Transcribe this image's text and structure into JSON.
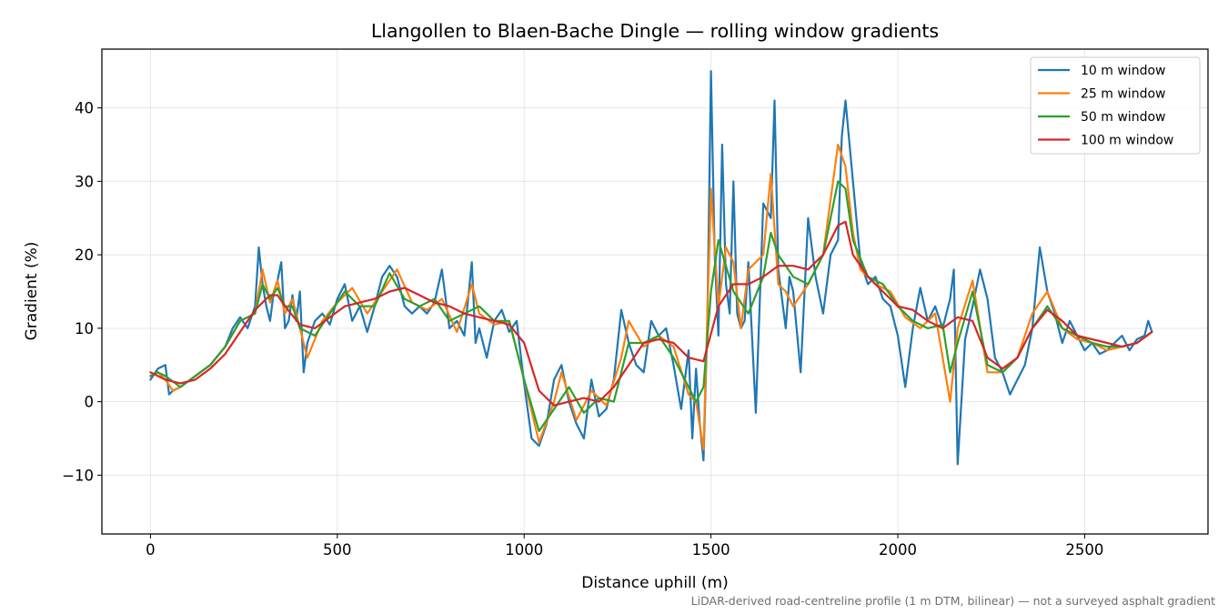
{
  "chart_data": {
    "type": "line",
    "title": "Llangollen to Blaen-Bache Dingle — rolling window gradients",
    "xlabel": "Distance uphill (m)",
    "ylabel": "Gradient (%)",
    "xlim": [
      -130,
      2830
    ],
    "ylim": [
      -18,
      48
    ],
    "xticks": [
      0,
      500,
      1000,
      1500,
      2000,
      2500
    ],
    "xtick_labels": [
      "0",
      "500",
      "1000",
      "1500",
      "2000",
      "2500"
    ],
    "yticks": [
      -10,
      0,
      10,
      20,
      30,
      40
    ],
    "ytick_labels": [
      "−10",
      "0",
      "10",
      "20",
      "30",
      "40"
    ],
    "grid": true,
    "legend_position": "top-right",
    "footnote": "LiDAR-derived road-centreline profile (1 m DTM, bilinear) — not a surveyed asphalt gradient",
    "series": [
      {
        "name": "10 m window",
        "color": "#1f77b4",
        "x": [
          0,
          20,
          40,
          50,
          60,
          80,
          120,
          160,
          200,
          220,
          240,
          260,
          280,
          290,
          300,
          310,
          320,
          330,
          340,
          350,
          360,
          370,
          380,
          390,
          400,
          410,
          420,
          440,
          460,
          480,
          500,
          520,
          540,
          560,
          580,
          600,
          620,
          640,
          660,
          680,
          700,
          720,
          740,
          760,
          780,
          800,
          820,
          840,
          860,
          870,
          880,
          900,
          920,
          940,
          960,
          980,
          1000,
          1020,
          1040,
          1060,
          1080,
          1100,
          1120,
          1140,
          1160,
          1180,
          1200,
          1220,
          1240,
          1260,
          1280,
          1300,
          1320,
          1340,
          1360,
          1380,
          1400,
          1420,
          1440,
          1450,
          1460,
          1470,
          1480,
          1490,
          1500,
          1510,
          1520,
          1530,
          1540,
          1550,
          1560,
          1570,
          1580,
          1590,
          1600,
          1620,
          1640,
          1660,
          1670,
          1680,
          1700,
          1710,
          1720,
          1740,
          1760,
          1780,
          1800,
          1820,
          1840,
          1850,
          1860,
          1880,
          1900,
          1920,
          1940,
          1960,
          1980,
          2000,
          2020,
          2040,
          2060,
          2080,
          2100,
          2120,
          2140,
          2150,
          2160,
          2180,
          2200,
          2220,
          2240,
          2260,
          2280,
          2300,
          2320,
          2340,
          2360,
          2380,
          2400,
          2420,
          2440,
          2460,
          2480,
          2500,
          2520,
          2540,
          2560,
          2580,
          2600,
          2620,
          2640,
          2660,
          2670,
          2680
        ],
        "values": [
          3.0,
          4.5,
          5.0,
          1.0,
          1.5,
          2.0,
          3.5,
          5.0,
          7.5,
          10.0,
          11.5,
          10.0,
          13.0,
          21.0,
          16.0,
          13.0,
          11.0,
          15.0,
          16.5,
          19.0,
          10.0,
          11.0,
          14.5,
          11.0,
          15.0,
          4.0,
          8.0,
          11.0,
          12.0,
          10.5,
          14.0,
          16.0,
          11.0,
          13.0,
          9.5,
          13.0,
          17.0,
          18.5,
          17.0,
          13.0,
          12.0,
          13.0,
          12.0,
          13.5,
          18.0,
          10.0,
          11.0,
          9.0,
          19.0,
          8.0,
          10.0,
          6.0,
          11.0,
          12.5,
          9.5,
          11.0,
          2.5,
          -5.0,
          -6.0,
          -3.0,
          3.0,
          5.0,
          0.0,
          -3.0,
          -5.0,
          3.0,
          -2.0,
          -1.0,
          3.0,
          12.5,
          8.0,
          5.0,
          4.0,
          11.0,
          9.0,
          10.0,
          5.0,
          -1.0,
          7.0,
          -5.0,
          4.5,
          -3.0,
          -8.0,
          10.0,
          45.0,
          20.0,
          9.0,
          35.0,
          16.0,
          12.0,
          30.0,
          12.0,
          10.0,
          11.0,
          19.0,
          -1.5,
          27.0,
          25.0,
          41.0,
          18.0,
          10.0,
          17.0,
          15.0,
          4.0,
          25.0,
          17.0,
          12.0,
          20.0,
          22.0,
          36.0,
          41.0,
          30.0,
          19.0,
          16.0,
          17.0,
          14.0,
          13.0,
          9.0,
          2.0,
          10.0,
          15.5,
          11.0,
          13.0,
          10.0,
          14.0,
          18.0,
          -8.5,
          8.5,
          13.0,
          18.0,
          14.0,
          6.0,
          4.0,
          1.0,
          3.0,
          5.0,
          10.0,
          21.0,
          15.0,
          12.0,
          8.0,
          11.0,
          9.0,
          7.0,
          8.0,
          6.5,
          7.0,
          8.0,
          9.0,
          7.0,
          8.5,
          9.0,
          11.0,
          9.5
        ]
      },
      {
        "name": "25 m window",
        "color": "#ff7f0e",
        "x": [
          0,
          20,
          40,
          60,
          80,
          120,
          160,
          200,
          240,
          280,
          300,
          320,
          340,
          360,
          380,
          400,
          420,
          460,
          500,
          540,
          580,
          620,
          660,
          700,
          740,
          780,
          820,
          860,
          880,
          920,
          960,
          1000,
          1040,
          1080,
          1100,
          1140,
          1180,
          1220,
          1260,
          1280,
          1320,
          1360,
          1400,
          1440,
          1460,
          1480,
          1500,
          1520,
          1540,
          1560,
          1580,
          1600,
          1640,
          1660,
          1680,
          1700,
          1720,
          1760,
          1800,
          1840,
          1860,
          1880,
          1900,
          1940,
          1980,
          2020,
          2060,
          2100,
          2140,
          2160,
          2200,
          2240,
          2280,
          2320,
          2360,
          2400,
          2440,
          2480,
          2520,
          2560,
          2600,
          2640,
          2680
        ],
        "values": [
          3.5,
          4.0,
          3.0,
          1.5,
          2.0,
          3.5,
          5.0,
          7.5,
          11.0,
          12.0,
          18.0,
          13.5,
          16.5,
          12.0,
          14.0,
          10.0,
          6.0,
          11.0,
          13.5,
          15.5,
          12.0,
          15.0,
          18.0,
          13.5,
          12.5,
          14.0,
          9.5,
          16.0,
          12.0,
          10.5,
          11.0,
          3.0,
          -5.5,
          0.0,
          4.0,
          -2.5,
          1.5,
          -0.5,
          6.0,
          11.0,
          7.5,
          9.0,
          7.5,
          1.0,
          0.0,
          -6.5,
          29.0,
          13.0,
          21.0,
          19.0,
          10.0,
          18.0,
          20.0,
          31.0,
          16.0,
          15.0,
          13.0,
          16.0,
          20.0,
          35.0,
          32.0,
          23.0,
          18.0,
          16.0,
          15.0,
          11.5,
          10.0,
          12.0,
          0.0,
          10.0,
          16.5,
          4.0,
          4.0,
          6.0,
          12.0,
          15.0,
          10.0,
          8.5,
          8.0,
          7.0,
          7.5,
          8.0,
          9.5
        ]
      },
      {
        "name": "50 m window",
        "color": "#2ca02c",
        "x": [
          0,
          20,
          40,
          80,
          120,
          160,
          200,
          240,
          280,
          300,
          320,
          340,
          360,
          380,
          400,
          440,
          480,
          520,
          560,
          600,
          640,
          680,
          720,
          760,
          800,
          840,
          880,
          920,
          960,
          1000,
          1040,
          1080,
          1120,
          1160,
          1200,
          1240,
          1280,
          1320,
          1360,
          1400,
          1440,
          1460,
          1480,
          1500,
          1520,
          1560,
          1600,
          1640,
          1660,
          1680,
          1720,
          1760,
          1800,
          1840,
          1860,
          1880,
          1920,
          1960,
          2000,
          2040,
          2080,
          2120,
          2140,
          2160,
          2200,
          2240,
          2280,
          2320,
          2360,
          2400,
          2440,
          2480,
          2520,
          2560,
          2600,
          2640,
          2680
        ],
        "values": [
          3.5,
          4.0,
          3.5,
          2.0,
          3.5,
          5.0,
          7.5,
          11.0,
          12.0,
          16.0,
          14.0,
          15.5,
          13.0,
          13.0,
          10.0,
          9.0,
          12.0,
          15.0,
          13.0,
          13.0,
          17.5,
          14.0,
          13.0,
          14.0,
          11.0,
          12.0,
          13.0,
          11.0,
          11.0,
          3.0,
          -4.0,
          -1.0,
          2.0,
          -1.5,
          0.5,
          0.0,
          8.0,
          8.0,
          9.0,
          6.0,
          2.0,
          0.0,
          2.0,
          15.0,
          22.0,
          15.0,
          12.0,
          17.0,
          23.0,
          20.0,
          17.0,
          16.0,
          20.0,
          30.0,
          29.0,
          22.0,
          17.0,
          16.0,
          13.0,
          11.0,
          10.0,
          10.5,
          4.0,
          8.0,
          15.0,
          5.0,
          4.0,
          6.0,
          10.0,
          13.0,
          10.0,
          9.0,
          8.0,
          7.5,
          7.5,
          8.0,
          9.5
        ]
      },
      {
        "name": "100 m window",
        "color": "#d62728",
        "x": [
          0,
          40,
          80,
          120,
          160,
          200,
          240,
          280,
          320,
          340,
          360,
          400,
          440,
          480,
          520,
          560,
          600,
          640,
          680,
          720,
          760,
          800,
          840,
          880,
          920,
          960,
          1000,
          1040,
          1080,
          1120,
          1160,
          1200,
          1240,
          1280,
          1320,
          1360,
          1400,
          1440,
          1480,
          1520,
          1560,
          1600,
          1640,
          1680,
          1720,
          1760,
          1800,
          1840,
          1860,
          1880,
          1920,
          1960,
          2000,
          2040,
          2080,
          2120,
          2160,
          2200,
          2240,
          2280,
          2320,
          2360,
          2400,
          2440,
          2480,
          2520,
          2560,
          2600,
          2640,
          2680
        ],
        "values": [
          4.0,
          3.0,
          2.5,
          3.0,
          4.5,
          6.5,
          9.5,
          12.5,
          14.5,
          14.5,
          13.0,
          10.5,
          10.0,
          11.5,
          13.0,
          13.5,
          14.0,
          15.0,
          15.5,
          14.5,
          13.5,
          13.0,
          12.0,
          11.5,
          11.0,
          10.5,
          8.0,
          1.5,
          -0.5,
          0.0,
          0.5,
          0.0,
          2.0,
          5.0,
          8.0,
          8.5,
          8.0,
          6.0,
          5.5,
          13.0,
          16.0,
          16.0,
          17.0,
          18.5,
          18.5,
          18.0,
          20.0,
          24.0,
          24.5,
          20.0,
          17.0,
          15.0,
          13.0,
          12.5,
          11.0,
          10.0,
          11.5,
          11.0,
          6.0,
          4.5,
          6.0,
          10.0,
          12.5,
          11.0,
          9.0,
          8.5,
          8.0,
          7.5,
          8.0,
          9.5
        ]
      }
    ]
  }
}
